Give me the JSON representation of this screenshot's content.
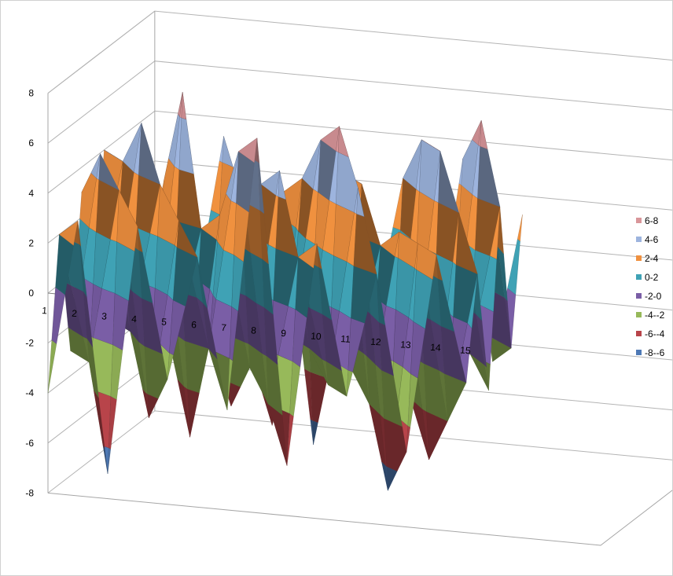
{
  "chart_data": {
    "type": "surface",
    "title": "",
    "xlabel": "",
    "ylabel": "",
    "zlim": [
      -8,
      8
    ],
    "z_ticks": [
      "8",
      "6",
      "4",
      "2",
      "0",
      "-2",
      "-4",
      "-6",
      "-8"
    ],
    "categories": [
      "1",
      "2",
      "3",
      "4",
      "5",
      "6",
      "7",
      "8",
      "9",
      "10",
      "11",
      "12",
      "13",
      "14",
      "15"
    ],
    "bands": [
      {
        "label": "6-8",
        "from": 6,
        "to": 8,
        "color": "#d9969a"
      },
      {
        "label": "4-6",
        "from": 4,
        "to": 6,
        "color": "#9db4de"
      },
      {
        "label": "2-4",
        "from": 2,
        "to": 4,
        "color": "#f0913f"
      },
      {
        "label": "0-2",
        "from": 0,
        "to": 2,
        "color": "#3fa2b5"
      },
      {
        "label": "-2-0",
        "from": -2,
        "to": 0,
        "color": "#7a5ea6"
      },
      {
        "label": "-4--2",
        "from": -4,
        "to": -2,
        "color": "#97b95a"
      },
      {
        "label": "-6--4",
        "from": -6,
        "to": -4,
        "color": "#b8444a"
      },
      {
        "label": "-8--6",
        "from": -8,
        "to": -6,
        "color": "#4e79b5"
      }
    ],
    "legend_position": "right",
    "grid": true,
    "series": [
      {
        "values": [
          -4,
          3,
          -7,
          3,
          -3,
          2,
          -4,
          7,
          -6,
          3,
          -3,
          2,
          -5,
          3,
          -2
        ]
      },
      {
        "values": [
          2,
          -3,
          4,
          -5,
          3,
          -2,
          6,
          -4,
          2,
          -3,
          5,
          -7,
          3,
          -4,
          2
        ]
      },
      {
        "values": [
          -3,
          5,
          -2,
          4,
          -6,
          3,
          -3,
          5,
          -2,
          7,
          -4,
          3,
          -6,
          4,
          -3
        ]
      },
      {
        "values": [
          3,
          -2,
          6,
          -3,
          2,
          -5,
          4,
          -2,
          6,
          -3,
          2,
          -4,
          6,
          -2,
          4
        ]
      },
      {
        "values": [
          -2,
          4,
          -4,
          7,
          -3,
          3,
          -6,
          4,
          -3,
          4,
          -5,
          6,
          -3,
          7,
          -2
        ]
      },
      {
        "values": [
          4,
          -3,
          3,
          -2,
          5,
          -4,
          3,
          -7,
          4,
          -2,
          4,
          -3,
          5,
          -3,
          3
        ]
      }
    ]
  }
}
